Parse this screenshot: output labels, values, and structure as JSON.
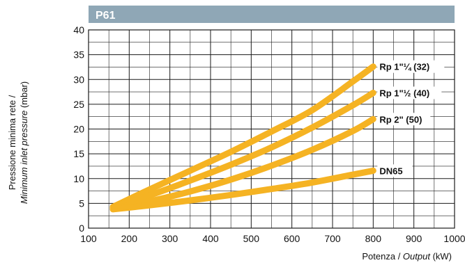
{
  "chart_data": {
    "type": "line",
    "title": "P61",
    "xlabel": {
      "part1": "Potenza / ",
      "part2": "Output",
      "part3": " (kW)"
    },
    "ylabel": {
      "line1": "Pressione minima rete /",
      "line2_part1": "Minimum inlet pressure",
      "line2_part2": " (mbar)"
    },
    "xlim": [
      100,
      1000
    ],
    "ylim": [
      0,
      40
    ],
    "x_ticks": [
      100,
      200,
      300,
      400,
      500,
      600,
      700,
      800,
      900,
      1000
    ],
    "y_ticks": [
      0,
      5,
      10,
      15,
      20,
      25,
      30,
      35,
      40
    ],
    "grid": true,
    "colors": {
      "header": "#8fa7b6",
      "curve": "#f5b323",
      "grid": "#1a1a1a"
    },
    "series": [
      {
        "name": "Rp 1\"¼ (32)",
        "x": [
          160,
          250,
          350,
          450,
          550,
          650,
          750,
          800
        ],
        "y": [
          4.3,
          7.8,
          11.6,
          15.4,
          19.5,
          23.8,
          29.6,
          32.6
        ]
      },
      {
        "name": "Rp 1\"½ (40)",
        "x": [
          160,
          250,
          350,
          450,
          550,
          650,
          750,
          800
        ],
        "y": [
          4.1,
          6.6,
          9.6,
          12.8,
          16.3,
          20.3,
          24.8,
          27.3
        ]
      },
      {
        "name": "Rp 2\" (50)",
        "x": [
          160,
          250,
          350,
          450,
          550,
          650,
          750,
          800
        ],
        "y": [
          3.9,
          5.4,
          7.4,
          9.8,
          12.6,
          15.8,
          19.6,
          22.0
        ]
      },
      {
        "name": "DN65",
        "x": [
          160,
          250,
          350,
          450,
          550,
          650,
          750,
          800
        ],
        "y": [
          3.8,
          4.6,
          5.6,
          6.7,
          7.9,
          9.2,
          10.8,
          11.6
        ]
      }
    ]
  }
}
